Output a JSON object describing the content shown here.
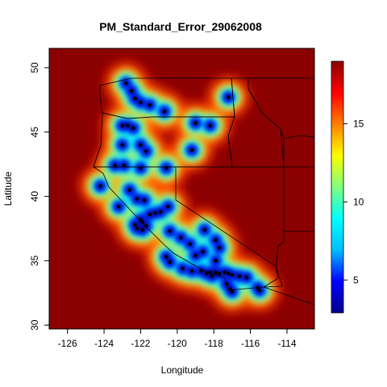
{
  "chart_data": {
    "type": "heatmap",
    "title": "PM_Standard_Error_29062008",
    "xlabel": "Longitude",
    "ylabel": "Latitude",
    "xlim": [
      -127,
      -112.5
    ],
    "ylim": [
      29.7,
      51.5
    ],
    "x_ticks": [
      -126,
      -124,
      -122,
      -120,
      -118,
      -116,
      -114
    ],
    "y_ticks": [
      30,
      35,
      40,
      45,
      50
    ],
    "x_tick_labels": [
      "-126",
      "-124",
      "-122",
      "-120",
      "-118",
      "-116",
      "-114"
    ],
    "y_tick_labels": [
      "30",
      "35",
      "40",
      "45",
      "50"
    ],
    "colorbar": {
      "min": 2.9,
      "max": 19.0,
      "ticks": [
        5,
        10,
        15
      ],
      "tick_labels": [
        "5",
        "10",
        "15"
      ],
      "colors": [
        "#00008b",
        "#0000ff",
        "#00bfff",
        "#00ffff",
        "#7fff7f",
        "#ffff00",
        "#ff7f00",
        "#ff0000",
        "#8b0000"
      ]
    },
    "monitor_sites": [
      [
        -122.8,
        48.8
      ],
      [
        -122.5,
        48.2
      ],
      [
        -122.3,
        47.6
      ],
      [
        -122.0,
        47.3
      ],
      [
        -121.5,
        47.1
      ],
      [
        -120.7,
        46.6
      ],
      [
        -117.2,
        47.7
      ],
      [
        -119.0,
        45.7
      ],
      [
        -118.2,
        45.5
      ],
      [
        -123.0,
        45.5
      ],
      [
        -122.7,
        45.5
      ],
      [
        -122.4,
        45.3
      ],
      [
        -122.0,
        44.0
      ],
      [
        -123.0,
        44.0
      ],
      [
        -121.7,
        43.5
      ],
      [
        -119.2,
        43.6
      ],
      [
        -123.4,
        42.4
      ],
      [
        -122.9,
        42.4
      ],
      [
        -122.0,
        42.2
      ],
      [
        -120.6,
        42.2
      ],
      [
        -124.2,
        40.8
      ],
      [
        -123.2,
        39.2
      ],
      [
        -122.6,
        40.5
      ],
      [
        -122.2,
        39.8
      ],
      [
        -121.8,
        39.7
      ],
      [
        -121.5,
        38.6
      ],
      [
        -121.2,
        38.7
      ],
      [
        -122.0,
        38.2
      ],
      [
        -122.3,
        37.8
      ],
      [
        -121.9,
        37.4
      ],
      [
        -121.7,
        37.7
      ],
      [
        -122.2,
        37.5
      ],
      [
        -121.9,
        38.0
      ],
      [
        -120.5,
        39.2
      ],
      [
        -120.9,
        38.8
      ],
      [
        -120.4,
        37.3
      ],
      [
        -119.8,
        36.8
      ],
      [
        -119.3,
        36.3
      ],
      [
        -119.0,
        35.4
      ],
      [
        -118.6,
        35.7
      ],
      [
        -117.9,
        35.0
      ],
      [
        -117.7,
        36.0
      ],
      [
        -120.6,
        35.3
      ],
      [
        -120.4,
        34.9
      ],
      [
        -119.7,
        34.4
      ],
      [
        -119.2,
        34.2
      ],
      [
        -118.7,
        34.2
      ],
      [
        -118.4,
        34.0
      ],
      [
        -118.2,
        34.1
      ],
      [
        -118.1,
        33.8
      ],
      [
        -117.9,
        34.1
      ],
      [
        -117.7,
        34.0
      ],
      [
        -117.4,
        34.1
      ],
      [
        -117.2,
        34.0
      ],
      [
        -117.0,
        33.9
      ],
      [
        -116.6,
        33.8
      ],
      [
        -117.3,
        33.2
      ],
      [
        -117.1,
        32.8
      ],
      [
        -117.0,
        32.6
      ],
      [
        -116.2,
        33.7
      ],
      [
        -115.6,
        32.9
      ],
      [
        -115.5,
        32.7
      ],
      [
        -118.5,
        37.4
      ],
      [
        -117.9,
        36.6
      ]
    ]
  }
}
